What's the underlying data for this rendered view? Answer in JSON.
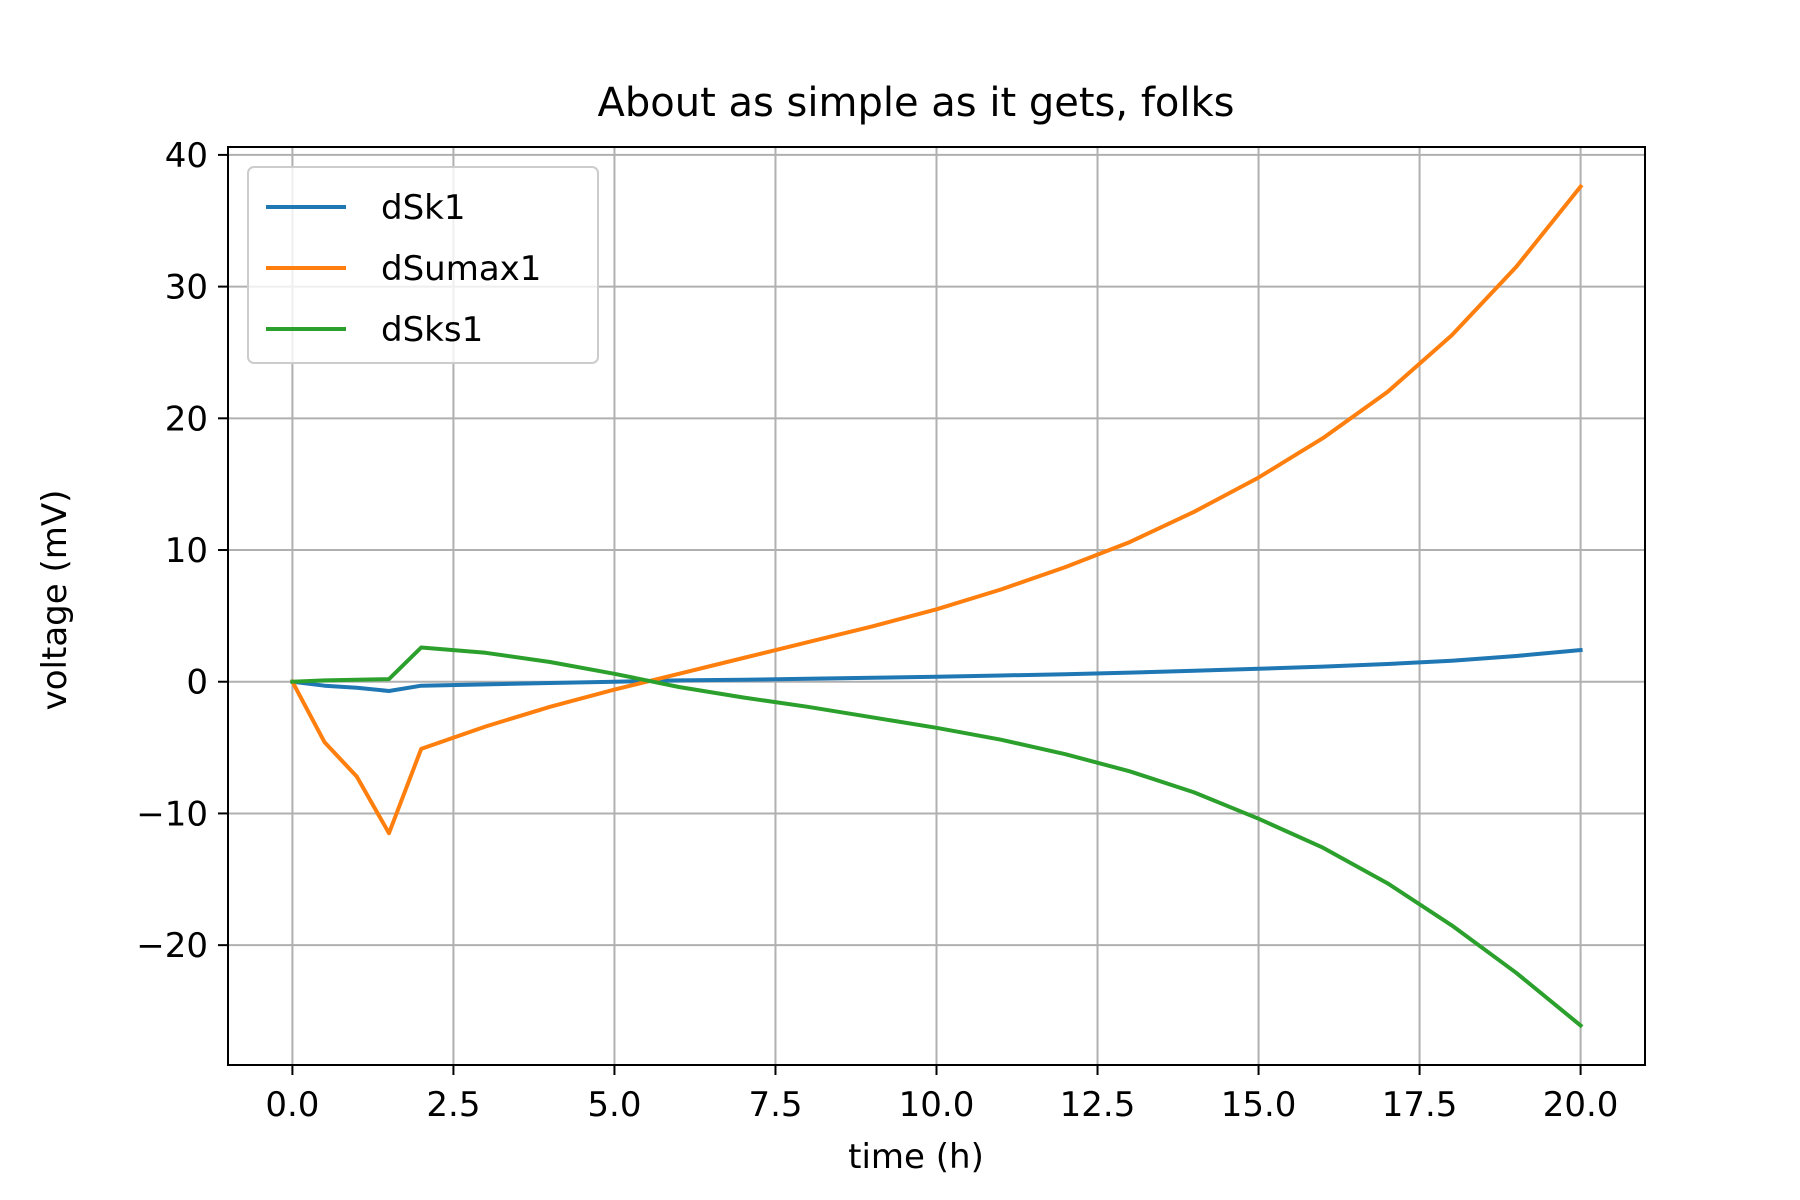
{
  "chart_data": {
    "type": "line",
    "title": "About as simple as it gets, folks",
    "xlabel": "time (h)",
    "ylabel": "voltage (mV)",
    "xlim": [
      -1.0,
      21.0
    ],
    "ylim": [
      -29.1,
      40.6
    ],
    "xticks": [
      0.0,
      2.5,
      5.0,
      7.5,
      10.0,
      12.5,
      15.0,
      17.5,
      20.0
    ],
    "xtick_labels": [
      "0.0",
      "2.5",
      "5.0",
      "7.5",
      "10.0",
      "12.5",
      "15.0",
      "17.5",
      "20.0"
    ],
    "yticks": [
      -20,
      -10,
      0,
      10,
      20,
      30,
      40
    ],
    "ytick_labels": [
      "−20",
      "−10",
      "0",
      "10",
      "20",
      "30",
      "40"
    ],
    "grid": true,
    "legend_position": "upper-left",
    "x": [
      0,
      0.5,
      1,
      1.5,
      2,
      3,
      4,
      5,
      6,
      7,
      8,
      9,
      10,
      11,
      12,
      13,
      14,
      15,
      16,
      17,
      18,
      19,
      20
    ],
    "series": [
      {
        "name": "dSk1",
        "color": "#1f77b4",
        "values": [
          0,
          -0.3,
          -0.45,
          -0.7,
          -0.3,
          -0.2,
          -0.1,
          0.0,
          0.1,
          0.15,
          0.22,
          0.3,
          0.38,
          0.47,
          0.57,
          0.69,
          0.83,
          0.98,
          1.15,
          1.35,
          1.6,
          1.95,
          2.4
        ]
      },
      {
        "name": "dSumax1",
        "color": "#ff7f0e",
        "values": [
          0,
          -4.6,
          -7.2,
          -11.5,
          -5.1,
          -3.4,
          -1.9,
          -0.6,
          0.6,
          1.8,
          3.0,
          4.2,
          5.5,
          7.0,
          8.7,
          10.6,
          12.9,
          15.5,
          18.5,
          22.0,
          26.3,
          31.5,
          37.6
        ]
      },
      {
        "name": "dSks1",
        "color": "#2ca02c",
        "values": [
          0,
          0.1,
          0.15,
          0.2,
          2.6,
          2.2,
          1.5,
          0.6,
          -0.4,
          -1.2,
          -1.9,
          -2.7,
          -3.5,
          -4.4,
          -5.5,
          -6.8,
          -8.4,
          -10.4,
          -12.6,
          -15.3,
          -18.5,
          -22.1,
          -26.1
        ]
      }
    ]
  }
}
